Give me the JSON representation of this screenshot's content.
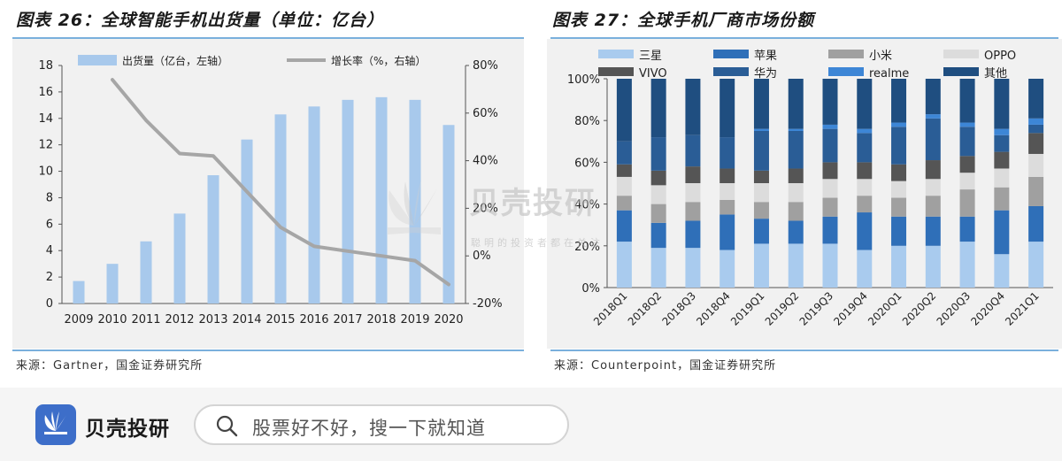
{
  "panel1": {
    "title": "图表 26：全球智能手机出货量（单位：亿台）",
    "source": "来源：Gartner，国金证券研究所"
  },
  "panel2": {
    "title": "图表 27：全球手机厂商市场份额",
    "source": "来源：Counterpoint，国金证券研究所"
  },
  "watermark": {
    "brand": "贝壳投研",
    "tagline": "聪明的投资者都在关注"
  },
  "footer": {
    "brand": "贝壳投研",
    "search_placeholder": "股票好不好，搜一下就知道"
  },
  "colors": {
    "bar_light": "#a8c9ec",
    "line_gray": "#a6a6a6",
    "footer_blue": "#3d6ec9"
  },
  "chart_data": [
    {
      "type": "bar",
      "title": "全球智能手机出货量（单位：亿台）",
      "categories": [
        "2009",
        "2010",
        "2011",
        "2012",
        "2013",
        "2014",
        "2015",
        "2016",
        "2017",
        "2018",
        "2019",
        "2020"
      ],
      "series": [
        {
          "name": "出货量（亿台，左轴）",
          "type": "bar",
          "axis": "left",
          "values": [
            1.7,
            3.0,
            4.7,
            6.8,
            9.7,
            12.4,
            14.3,
            14.9,
            15.4,
            15.6,
            15.4,
            13.5
          ]
        },
        {
          "name": "增长率（%，右轴）",
          "type": "line",
          "axis": "right",
          "values": [
            null,
            74,
            57,
            43,
            42,
            27,
            12,
            4,
            2,
            0,
            -2,
            -12
          ]
        }
      ],
      "ylim_left": [
        0,
        18
      ],
      "yticks_left": [
        "0",
        "2",
        "4",
        "6",
        "8",
        "10",
        "12",
        "14",
        "16",
        "18"
      ],
      "ylim_right": [
        -20,
        80
      ],
      "yticks_right": [
        "-20%",
        "0%",
        "20%",
        "40%",
        "60%",
        "80%"
      ],
      "legend": "top"
    },
    {
      "type": "bar",
      "stacked": true,
      "title": "全球手机厂商市场份额",
      "categories": [
        "2018Q1",
        "2018Q2",
        "2018Q3",
        "2018Q4",
        "2019Q1",
        "2019Q2",
        "2019Q3",
        "2019Q4",
        "2020Q1",
        "2020Q2",
        "2020Q3",
        "2020Q4",
        "2021Q1"
      ],
      "ylim": [
        0,
        100
      ],
      "yticks": [
        "0%",
        "20%",
        "40%",
        "60%",
        "80%",
        "100%"
      ],
      "legend": "top",
      "series": [
        {
          "name": "三星",
          "color": "#a9cbee",
          "values": [
            22,
            19,
            19,
            18,
            21,
            21,
            21,
            18,
            20,
            20,
            22,
            16,
            22
          ]
        },
        {
          "name": "苹果",
          "color": "#2f6fb8",
          "values": [
            15,
            12,
            13,
            17,
            12,
            11,
            13,
            18,
            14,
            14,
            12,
            21,
            17
          ]
        },
        {
          "name": "小米",
          "color": "#a0a0a0",
          "values": [
            7,
            9,
            9,
            7,
            8,
            9,
            9,
            8,
            9,
            10,
            13,
            11,
            14
          ]
        },
        {
          "name": "OPPO",
          "color": "#dcdcdc",
          "values": [
            9,
            9,
            9,
            8,
            9,
            9,
            9,
            8,
            8,
            8,
            8,
            9,
            11
          ]
        },
        {
          "name": "VIVO",
          "color": "#555555",
          "values": [
            6,
            7,
            8,
            7,
            6,
            7,
            8,
            8,
            8,
            9,
            8,
            8,
            10
          ]
        },
        {
          "name": "华为",
          "color": "#2a5d96",
          "values": [
            11,
            16,
            15,
            15,
            19,
            18,
            16,
            14,
            18,
            20,
            14,
            8,
            4
          ]
        },
        {
          "name": "realme",
          "color": "#3d86d6",
          "values": [
            0,
            0,
            0,
            0,
            1,
            1,
            2,
            2,
            2,
            2,
            2,
            3,
            3
          ]
        },
        {
          "name": "其他",
          "color": "#1f4e80",
          "values": [
            30,
            28,
            27,
            28,
            24,
            24,
            22,
            24,
            21,
            17,
            21,
            24,
            19
          ]
        }
      ]
    }
  ]
}
